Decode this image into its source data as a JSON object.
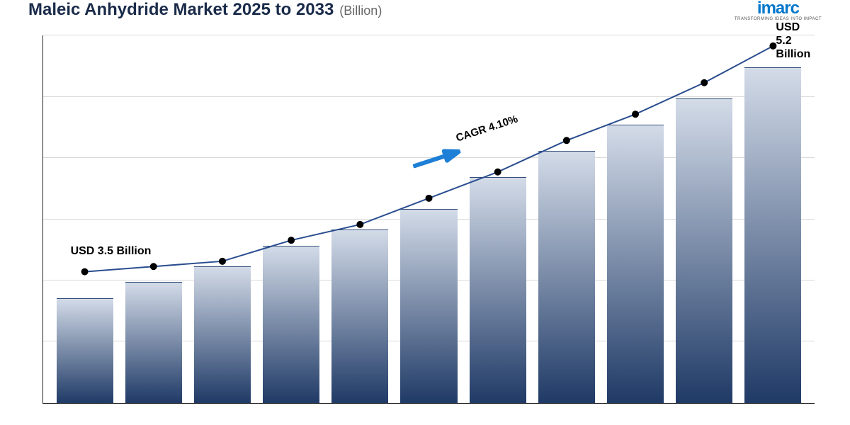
{
  "header": {
    "title_main": "Maleic Anhydride Market 2025 to 2033",
    "title_sub": "(Billion)",
    "logo_text": "imarc",
    "logo_tag": "TRANSFORMING IDEAS INTO IMPACT"
  },
  "chart": {
    "type": "bar+line",
    "bar_values": [
      2.0,
      2.3,
      2.6,
      3.0,
      3.3,
      3.7,
      4.3,
      4.8,
      5.3,
      5.8,
      6.4
    ],
    "line_values": [
      2.5,
      2.6,
      2.7,
      3.1,
      3.4,
      3.9,
      4.4,
      5.0,
      5.5,
      6.1,
      6.8
    ],
    "ylim_max": 7.0,
    "gridlines": [
      0.167,
      0.333,
      0.5,
      0.667,
      0.833,
      1.0
    ],
    "grid_color": "#d9d9d9",
    "bar_gradient_top": "#d3dbe8",
    "bar_gradient_bottom": "#1f3a66",
    "bar_border_top": "#334f7a",
    "bar_width_pct": 7.5,
    "line_color": "#2a4d8f",
    "line_width": 2,
    "marker_color": "#000000",
    "marker_radius": 5,
    "background_color": "#ffffff",
    "axis_color": "#222222",
    "start_label": "USD 3.5 Billion",
    "start_label_fontsize": 16,
    "end_label_line1": "USD 5.2",
    "end_label_line2": "Billion",
    "end_label_fontsize": 16,
    "cagr_text": "CAGR 4.10%",
    "cagr_fontsize": 15,
    "cagr_arrow_color": "#1e7fd6",
    "cagr_rotation_deg": -18
  }
}
